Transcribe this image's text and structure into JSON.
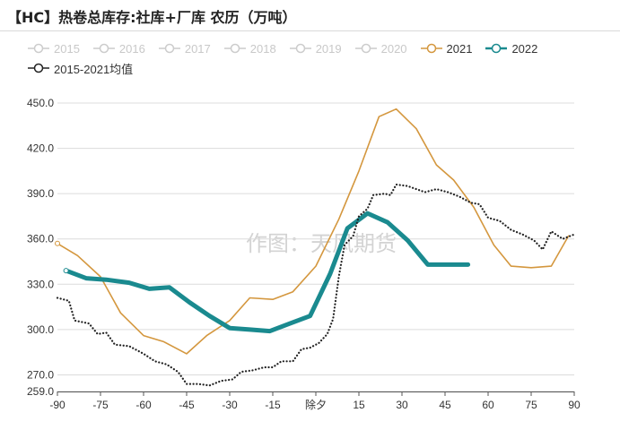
{
  "header": {
    "title": "【HC】热卷总库存:社库+厂库 农历（万吨）"
  },
  "watermark": "作图：天风期货",
  "chart_data": {
    "type": "line",
    "title": "【HC】热卷总库存:社库+厂库 农历（万吨）",
    "unit": "万吨",
    "ylim": [
      259,
      450
    ],
    "xlim": [
      -90,
      90
    ],
    "y_ticks": [
      259.0,
      270.0,
      300.0,
      330.0,
      360.0,
      390.0,
      420.0,
      450.0
    ],
    "y_tick_labels": [
      "259.0",
      "270.0",
      "300.0",
      "330.0",
      "360.0",
      "390.0",
      "420.0",
      "450.0"
    ],
    "x_ticks": [
      -90,
      -75,
      -60,
      -45,
      -30,
      -15,
      0,
      15,
      30,
      45,
      60,
      75,
      90
    ],
    "x_tick_labels": [
      "-90",
      "-75",
      "-60",
      "-45",
      "-30",
      "-15",
      "除夕",
      "15",
      "30",
      "45",
      "60",
      "75",
      "90"
    ],
    "grid": true,
    "legend_position": "top",
    "series": [
      {
        "name": "2015",
        "legend_only": true,
        "color": "#cccccc"
      },
      {
        "name": "2016",
        "legend_only": true,
        "color": "#cccccc"
      },
      {
        "name": "2017",
        "legend_only": true,
        "color": "#cccccc"
      },
      {
        "name": "2018",
        "legend_only": true,
        "color": "#cccccc"
      },
      {
        "name": "2019",
        "legend_only": true,
        "color": "#cccccc"
      },
      {
        "name": "2020",
        "legend_only": true,
        "color": "#cccccc"
      },
      {
        "name": "2021",
        "color": "#d4973e",
        "style": "solid",
        "points": [
          [
            -90,
            357
          ],
          [
            -83,
            349
          ],
          [
            -75,
            335
          ],
          [
            -68,
            311
          ],
          [
            -60,
            296
          ],
          [
            -53,
            292
          ],
          [
            -45,
            284
          ],
          [
            -38,
            296
          ],
          [
            -30,
            306
          ],
          [
            -23,
            321
          ],
          [
            -15,
            320
          ],
          [
            -8,
            325
          ],
          [
            0,
            342
          ],
          [
            8,
            373
          ],
          [
            15,
            405
          ],
          [
            22,
            441
          ],
          [
            28,
            446
          ],
          [
            35,
            433
          ],
          [
            42,
            409
          ],
          [
            48,
            399
          ],
          [
            55,
            381
          ],
          [
            62,
            356
          ],
          [
            68,
            342
          ],
          [
            75,
            341
          ],
          [
            82,
            342
          ],
          [
            88,
            362
          ]
        ]
      },
      {
        "name": "2022",
        "color": "#1a8a8f",
        "style": "thick",
        "points": [
          [
            -87,
            339
          ],
          [
            -80,
            334
          ],
          [
            -73,
            333
          ],
          [
            -65,
            331
          ],
          [
            -58,
            327
          ],
          [
            -51,
            328
          ],
          [
            -44,
            318
          ],
          [
            -37,
            309
          ],
          [
            -30,
            301
          ],
          [
            -23,
            300
          ],
          [
            -16,
            299
          ],
          [
            -9,
            304
          ],
          [
            -2,
            309
          ],
          [
            5,
            337
          ],
          [
            11,
            367
          ],
          [
            18,
            377
          ],
          [
            25,
            371
          ],
          [
            32,
            359
          ],
          [
            39,
            343
          ],
          [
            46,
            343
          ],
          [
            53,
            343
          ]
        ]
      },
      {
        "name": "2015-2021均值",
        "color": "#222222",
        "style": "dotted",
        "points": [
          [
            -90,
            321
          ],
          [
            -86,
            319
          ],
          [
            -84,
            306
          ],
          [
            -79,
            304
          ],
          [
            -76,
            297
          ],
          [
            -73,
            298
          ],
          [
            -70,
            290
          ],
          [
            -65,
            289
          ],
          [
            -60,
            284
          ],
          [
            -56,
            279
          ],
          [
            -52,
            277
          ],
          [
            -48,
            272
          ],
          [
            -45,
            264
          ],
          [
            -41,
            264
          ],
          [
            -37,
            263
          ],
          [
            -33,
            266
          ],
          [
            -29,
            267
          ],
          [
            -26,
            272
          ],
          [
            -22,
            273
          ],
          [
            -18,
            275
          ],
          [
            -15,
            275
          ],
          [
            -12,
            279
          ],
          [
            -8,
            279
          ],
          [
            -5,
            287
          ],
          [
            -2,
            288
          ],
          [
            1,
            291
          ],
          [
            4,
            297
          ],
          [
            6,
            307
          ],
          [
            8,
            335
          ],
          [
            10,
            356
          ],
          [
            13,
            362
          ],
          [
            15,
            375
          ],
          [
            18,
            380
          ],
          [
            20,
            389
          ],
          [
            24,
            390
          ],
          [
            26,
            389
          ],
          [
            28,
            396
          ],
          [
            32,
            395
          ],
          [
            35,
            393
          ],
          [
            38,
            391
          ],
          [
            42,
            393
          ],
          [
            46,
            391
          ],
          [
            50,
            388
          ],
          [
            54,
            384
          ],
          [
            57,
            383
          ],
          [
            60,
            374
          ],
          [
            64,
            372
          ],
          [
            68,
            366
          ],
          [
            72,
            363
          ],
          [
            76,
            359
          ],
          [
            79,
            353
          ],
          [
            82,
            365
          ],
          [
            86,
            360
          ],
          [
            90,
            363
          ]
        ]
      }
    ]
  }
}
